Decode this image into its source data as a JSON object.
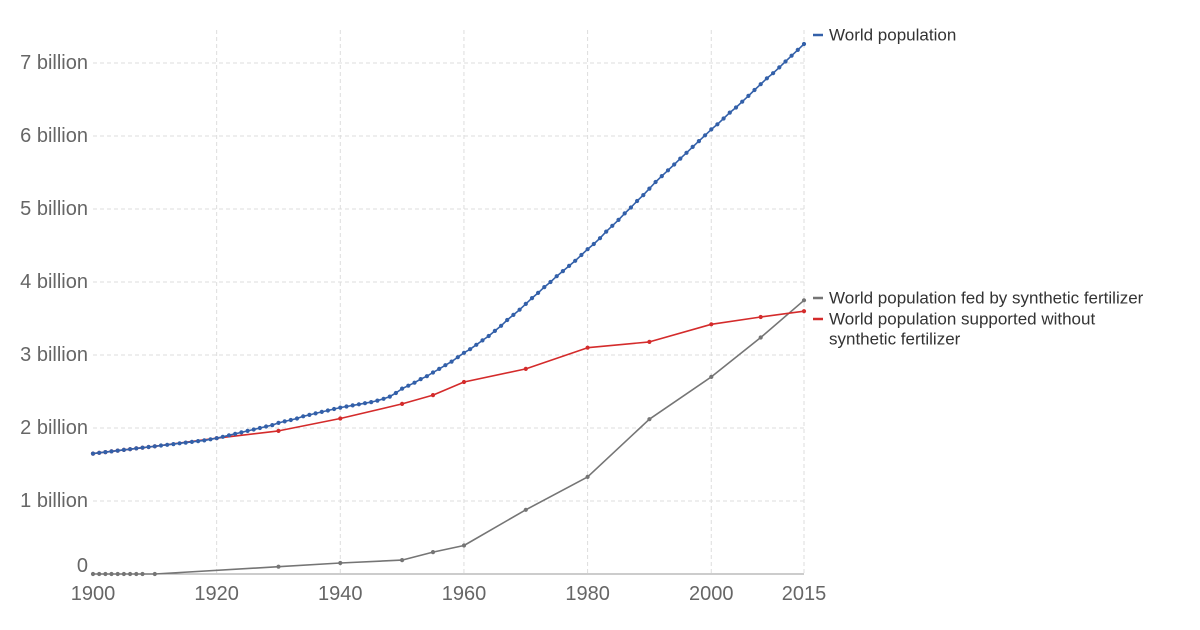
{
  "chart_data": {
    "type": "line",
    "title": "",
    "xlabel": "",
    "ylabel": "",
    "xlim": [
      1900,
      2015
    ],
    "ylim": [
      0,
      7400000000
    ],
    "grid": true,
    "legend_placement": "right",
    "x_ticks": [
      {
        "value": 1900,
        "label": "1900"
      },
      {
        "value": 1920,
        "label": "1920"
      },
      {
        "value": 1940,
        "label": "1940"
      },
      {
        "value": 1960,
        "label": "1960"
      },
      {
        "value": 1980,
        "label": "1980"
      },
      {
        "value": 2000,
        "label": "2000"
      },
      {
        "value": 2015,
        "label": "2015"
      }
    ],
    "y_ticks": [
      {
        "value": 0,
        "label": "0"
      },
      {
        "value": 1000000000,
        "label": "1 billion"
      },
      {
        "value": 2000000000,
        "label": "2 billion"
      },
      {
        "value": 3000000000,
        "label": "3 billion"
      },
      {
        "value": 4000000000,
        "label": "4 billion"
      },
      {
        "value": 5000000000,
        "label": "5 billion"
      },
      {
        "value": 6000000000,
        "label": "6 billion"
      },
      {
        "value": 7000000000,
        "label": "7 billion"
      }
    ],
    "series": [
      {
        "name": "World population",
        "legend_lines": [
          "World population"
        ],
        "color": "#3360a9",
        "points": [
          [
            1900,
            1650000000
          ],
          [
            1901,
            1660000000
          ],
          [
            1902,
            1670000000
          ],
          [
            1903,
            1680000000
          ],
          [
            1904,
            1690000000
          ],
          [
            1905,
            1700000000
          ],
          [
            1906,
            1710000000
          ],
          [
            1907,
            1720000000
          ],
          [
            1908,
            1730000000
          ],
          [
            1909,
            1740000000
          ],
          [
            1910,
            1750000000
          ],
          [
            1911,
            1760000000
          ],
          [
            1912,
            1770000000
          ],
          [
            1913,
            1780000000
          ],
          [
            1914,
            1790000000
          ],
          [
            1915,
            1800000000
          ],
          [
            1916,
            1810000000
          ],
          [
            1917,
            1820000000
          ],
          [
            1918,
            1830000000
          ],
          [
            1919,
            1845000000
          ],
          [
            1920,
            1860000000
          ],
          [
            1921,
            1880000000
          ],
          [
            1922,
            1900000000
          ],
          [
            1923,
            1920000000
          ],
          [
            1924,
            1940000000
          ],
          [
            1925,
            1960000000
          ],
          [
            1926,
            1980000000
          ],
          [
            1927,
            2000000000
          ],
          [
            1928,
            2020000000
          ],
          [
            1929,
            2040000000
          ],
          [
            1930,
            2070000000
          ],
          [
            1931,
            2090000000
          ],
          [
            1932,
            2110000000
          ],
          [
            1933,
            2130000000
          ],
          [
            1934,
            2160000000
          ],
          [
            1935,
            2180000000
          ],
          [
            1936,
            2200000000
          ],
          [
            1937,
            2220000000
          ],
          [
            1938,
            2240000000
          ],
          [
            1939,
            2260000000
          ],
          [
            1940,
            2280000000
          ],
          [
            1941,
            2295000000
          ],
          [
            1942,
            2310000000
          ],
          [
            1943,
            2325000000
          ],
          [
            1944,
            2340000000
          ],
          [
            1945,
            2355000000
          ],
          [
            1946,
            2375000000
          ],
          [
            1947,
            2400000000
          ],
          [
            1948,
            2430000000
          ],
          [
            1949,
            2480000000
          ],
          [
            1950,
            2540000000
          ],
          [
            1951,
            2580000000
          ],
          [
            1952,
            2620000000
          ],
          [
            1953,
            2670000000
          ],
          [
            1954,
            2710000000
          ],
          [
            1955,
            2760000000
          ],
          [
            1956,
            2810000000
          ],
          [
            1957,
            2860000000
          ],
          [
            1958,
            2910000000
          ],
          [
            1959,
            2970000000
          ],
          [
            1960,
            3030000000
          ],
          [
            1961,
            3080000000
          ],
          [
            1962,
            3140000000
          ],
          [
            1963,
            3200000000
          ],
          [
            1964,
            3260000000
          ],
          [
            1965,
            3330000000
          ],
          [
            1966,
            3400000000
          ],
          [
            1967,
            3480000000
          ],
          [
            1968,
            3550000000
          ],
          [
            1969,
            3620000000
          ],
          [
            1970,
            3700000000
          ],
          [
            1971,
            3780000000
          ],
          [
            1972,
            3850000000
          ],
          [
            1973,
            3930000000
          ],
          [
            1974,
            4000000000
          ],
          [
            1975,
            4080000000
          ],
          [
            1976,
            4150000000
          ],
          [
            1977,
            4220000000
          ],
          [
            1978,
            4290000000
          ],
          [
            1979,
            4370000000
          ],
          [
            1980,
            4450000000
          ],
          [
            1981,
            4520000000
          ],
          [
            1982,
            4600000000
          ],
          [
            1983,
            4690000000
          ],
          [
            1984,
            4770000000
          ],
          [
            1985,
            4850000000
          ],
          [
            1986,
            4940000000
          ],
          [
            1987,
            5020000000
          ],
          [
            1988,
            5110000000
          ],
          [
            1989,
            5190000000
          ],
          [
            1990,
            5280000000
          ],
          [
            1991,
            5370000000
          ],
          [
            1992,
            5450000000
          ],
          [
            1993,
            5530000000
          ],
          [
            1994,
            5610000000
          ],
          [
            1995,
            5690000000
          ],
          [
            1996,
            5770000000
          ],
          [
            1997,
            5850000000
          ],
          [
            1998,
            5930000000
          ],
          [
            1999,
            6010000000
          ],
          [
            2000,
            6090000000
          ],
          [
            2001,
            6160000000
          ],
          [
            2002,
            6240000000
          ],
          [
            2003,
            6320000000
          ],
          [
            2004,
            6390000000
          ],
          [
            2005,
            6470000000
          ],
          [
            2006,
            6550000000
          ],
          [
            2007,
            6630000000
          ],
          [
            2008,
            6710000000
          ],
          [
            2009,
            6790000000
          ],
          [
            2010,
            6860000000
          ],
          [
            2011,
            6940000000
          ],
          [
            2012,
            7020000000
          ],
          [
            2013,
            7100000000
          ],
          [
            2014,
            7180000000
          ],
          [
            2015,
            7260000000
          ]
        ]
      },
      {
        "name": "World population fed by synthetic fertilizer",
        "legend_lines": [
          "World population fed by synthetic fertilizer"
        ],
        "color": "#757575",
        "points": [
          [
            1900,
            0
          ],
          [
            1901,
            0
          ],
          [
            1902,
            0
          ],
          [
            1903,
            0
          ],
          [
            1904,
            0
          ],
          [
            1905,
            0
          ],
          [
            1906,
            0
          ],
          [
            1907,
            0
          ],
          [
            1908,
            0
          ],
          [
            1910,
            0
          ],
          [
            1930,
            100000000
          ],
          [
            1940,
            150000000
          ],
          [
            1950,
            190000000
          ],
          [
            1955,
            300000000
          ],
          [
            1960,
            390000000
          ],
          [
            1970,
            880000000
          ],
          [
            1980,
            1330000000
          ],
          [
            1990,
            2120000000
          ],
          [
            2000,
            2700000000
          ],
          [
            2008,
            3240000000
          ],
          [
            2015,
            3750000000
          ]
        ]
      },
      {
        "name": "World population supported without synthetic fertilizer",
        "legend_lines": [
          "World population supported without",
          "synthetic fertilizer"
        ],
        "color": "#d42b2b",
        "points": [
          [
            1900,
            1650000000
          ],
          [
            1901,
            1660000000
          ],
          [
            1902,
            1670000000
          ],
          [
            1903,
            1680000000
          ],
          [
            1904,
            1690000000
          ],
          [
            1905,
            1700000000
          ],
          [
            1906,
            1710000000
          ],
          [
            1907,
            1720000000
          ],
          [
            1908,
            1730000000
          ],
          [
            1909,
            1740000000
          ],
          [
            1910,
            1750000000
          ],
          [
            1920,
            1860000000
          ],
          [
            1930,
            1960000000
          ],
          [
            1940,
            2130000000
          ],
          [
            1950,
            2330000000
          ],
          [
            1955,
            2450000000
          ],
          [
            1960,
            2630000000
          ],
          [
            1970,
            2810000000
          ],
          [
            1980,
            3100000000
          ],
          [
            1990,
            3180000000
          ],
          [
            2000,
            3420000000
          ],
          [
            2008,
            3520000000
          ],
          [
            2015,
            3600000000
          ]
        ]
      }
    ]
  }
}
